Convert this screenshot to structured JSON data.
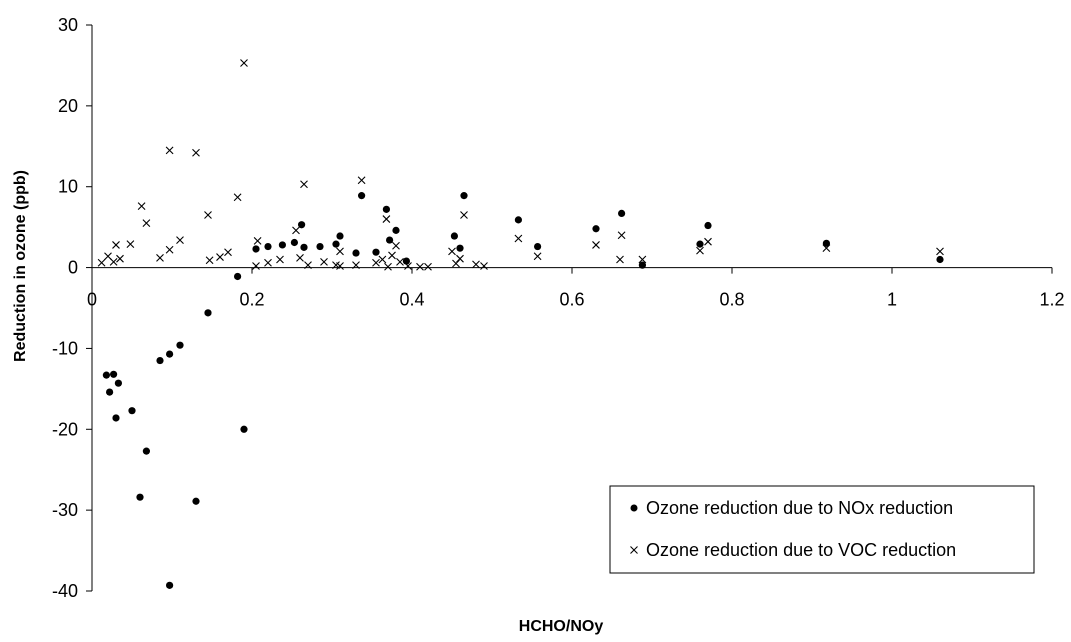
{
  "chart_data": {
    "type": "scatter",
    "title": "",
    "xlabel": "HCHO/NOy",
    "ylabel": "Reduction in ozone (ppb)",
    "xlim": [
      0,
      1.2
    ],
    "ylim": [
      -40,
      30
    ],
    "xticks": [
      "0",
      "0.2",
      "0.4",
      "0.6",
      "0.8",
      "1",
      "1.2"
    ],
    "xtick_values": [
      0,
      0.2,
      0.4,
      0.6,
      0.8,
      1.0,
      1.2
    ],
    "yticks": [
      "30",
      "20",
      "10",
      "0",
      "-10",
      "-20",
      "-30",
      "-40"
    ],
    "ytick_values": [
      30,
      20,
      10,
      0,
      -10,
      -20,
      -30,
      -40
    ],
    "grid": false,
    "legend_position": "bottom-right",
    "series": [
      {
        "name": "Ozone reduction due to NOx reduction",
        "marker": "dot",
        "color": "#000000",
        "points": [
          [
            0.018,
            -13.3
          ],
          [
            0.022,
            -15.4
          ],
          [
            0.027,
            -13.2
          ],
          [
            0.03,
            -18.6
          ],
          [
            0.033,
            -14.3
          ],
          [
            0.05,
            -17.7
          ],
          [
            0.06,
            -28.4
          ],
          [
            0.068,
            -22.7
          ],
          [
            0.085,
            -11.5
          ],
          [
            0.097,
            -39.3
          ],
          [
            0.097,
            -10.7
          ],
          [
            0.11,
            -9.6
          ],
          [
            0.13,
            -28.9
          ],
          [
            0.145,
            -5.6
          ],
          [
            0.182,
            -1.1
          ],
          [
            0.19,
            -20.0
          ],
          [
            0.205,
            2.3
          ],
          [
            0.22,
            2.6
          ],
          [
            0.238,
            2.8
          ],
          [
            0.253,
            3.1
          ],
          [
            0.262,
            5.3
          ],
          [
            0.265,
            2.5
          ],
          [
            0.285,
            2.6
          ],
          [
            0.305,
            2.9
          ],
          [
            0.31,
            3.9
          ],
          [
            0.33,
            1.8
          ],
          [
            0.337,
            8.9
          ],
          [
            0.355,
            1.9
          ],
          [
            0.368,
            7.2
          ],
          [
            0.372,
            3.4
          ],
          [
            0.38,
            4.6
          ],
          [
            0.393,
            0.8
          ],
          [
            0.453,
            3.9
          ],
          [
            0.46,
            2.4
          ],
          [
            0.465,
            8.9
          ],
          [
            0.533,
            5.9
          ],
          [
            0.557,
            2.6
          ],
          [
            0.63,
            4.8
          ],
          [
            0.662,
            6.7
          ],
          [
            0.688,
            0.3
          ],
          [
            0.76,
            2.9
          ],
          [
            0.77,
            5.2
          ],
          [
            0.918,
            3.0
          ],
          [
            1.06,
            1.0
          ]
        ]
      },
      {
        "name": "Ozone reduction due to VOC reduction",
        "marker": "cross",
        "color": "#000000",
        "points": [
          [
            0.012,
            0.6
          ],
          [
            0.02,
            1.4
          ],
          [
            0.027,
            0.7
          ],
          [
            0.03,
            2.8
          ],
          [
            0.035,
            1.1
          ],
          [
            0.048,
            2.9
          ],
          [
            0.062,
            7.6
          ],
          [
            0.068,
            5.5
          ],
          [
            0.085,
            1.2
          ],
          [
            0.097,
            14.5
          ],
          [
            0.097,
            2.2
          ],
          [
            0.11,
            3.4
          ],
          [
            0.13,
            14.2
          ],
          [
            0.145,
            6.5
          ],
          [
            0.147,
            0.9
          ],
          [
            0.16,
            1.3
          ],
          [
            0.17,
            1.9
          ],
          [
            0.182,
            8.7
          ],
          [
            0.19,
            25.3
          ],
          [
            0.205,
            0.2
          ],
          [
            0.207,
            3.3
          ],
          [
            0.22,
            0.6
          ],
          [
            0.235,
            1.0
          ],
          [
            0.255,
            4.6
          ],
          [
            0.26,
            1.2
          ],
          [
            0.265,
            10.3
          ],
          [
            0.27,
            0.3
          ],
          [
            0.29,
            0.7
          ],
          [
            0.305,
            0.3
          ],
          [
            0.31,
            2.0
          ],
          [
            0.31,
            0.2
          ],
          [
            0.33,
            0.3
          ],
          [
            0.337,
            10.8
          ],
          [
            0.355,
            0.6
          ],
          [
            0.363,
            1.0
          ],
          [
            0.368,
            6.0
          ],
          [
            0.37,
            0.1
          ],
          [
            0.375,
            1.5
          ],
          [
            0.38,
            2.7
          ],
          [
            0.385,
            0.7
          ],
          [
            0.395,
            0.2
          ],
          [
            0.41,
            0.1
          ],
          [
            0.42,
            0.1
          ],
          [
            0.45,
            2.0
          ],
          [
            0.455,
            0.5
          ],
          [
            0.46,
            1.1
          ],
          [
            0.465,
            6.5
          ],
          [
            0.48,
            0.4
          ],
          [
            0.49,
            0.2
          ],
          [
            0.533,
            3.6
          ],
          [
            0.557,
            1.4
          ],
          [
            0.63,
            2.8
          ],
          [
            0.66,
            1.0
          ],
          [
            0.662,
            4.0
          ],
          [
            0.688,
            1.0
          ],
          [
            0.76,
            2.1
          ],
          [
            0.77,
            3.2
          ],
          [
            0.918,
            2.4
          ],
          [
            1.06,
            2.0
          ]
        ]
      }
    ]
  }
}
